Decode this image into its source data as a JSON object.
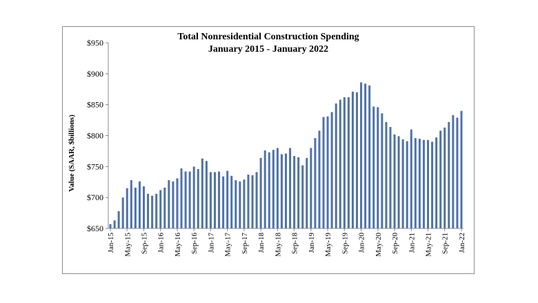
{
  "chart_data": {
    "type": "bar",
    "title": "Total Nonresidential Construction Spending",
    "subtitle": "January 2015 - January 2022",
    "xlabel": "",
    "ylabel": "Value (SAAR, $billions)",
    "ylim": [
      650,
      950
    ],
    "y_ticks": [
      "$650",
      "$700",
      "$750",
      "$800",
      "$850",
      "$900",
      "$950"
    ],
    "y_tick_values": [
      650,
      700,
      750,
      800,
      850,
      900,
      950
    ],
    "x_tick_labels": [
      "Jan-15",
      "May-15",
      "Sep-15",
      "Jan-16",
      "May-16",
      "Sep-16",
      "Jan-17",
      "May-17",
      "Sep-17",
      "Jan-18",
      "May-18",
      "Sep-18",
      "Jan-19",
      "May-19",
      "Sep-19",
      "Jan-20",
      "May-20",
      "Sep-20",
      "Jan-21",
      "May-21",
      "Sep-21",
      "Jan-22"
    ],
    "bar_color": "#4f73a8",
    "grid": false,
    "categories": [
      "Jan-15",
      "Feb-15",
      "Mar-15",
      "Apr-15",
      "May-15",
      "Jun-15",
      "Jul-15",
      "Aug-15",
      "Sep-15",
      "Oct-15",
      "Nov-15",
      "Dec-15",
      "Jan-16",
      "Feb-16",
      "Mar-16",
      "Apr-16",
      "May-16",
      "Jun-16",
      "Jul-16",
      "Aug-16",
      "Sep-16",
      "Oct-16",
      "Nov-16",
      "Dec-16",
      "Jan-17",
      "Feb-17",
      "Mar-17",
      "Apr-17",
      "May-17",
      "Jun-17",
      "Jul-17",
      "Aug-17",
      "Sep-17",
      "Oct-17",
      "Nov-17",
      "Dec-17",
      "Jan-18",
      "Feb-18",
      "Mar-18",
      "Apr-18",
      "May-18",
      "Jun-18",
      "Jul-18",
      "Aug-18",
      "Sep-18",
      "Oct-18",
      "Nov-18",
      "Dec-18",
      "Jan-19",
      "Feb-19",
      "Mar-19",
      "Apr-19",
      "May-19",
      "Jun-19",
      "Jul-19",
      "Aug-19",
      "Sep-19",
      "Oct-19",
      "Nov-19",
      "Dec-19",
      "Jan-20",
      "Feb-20",
      "Mar-20",
      "Apr-20",
      "May-20",
      "Jun-20",
      "Jul-20",
      "Aug-20",
      "Sep-20",
      "Oct-20",
      "Nov-20",
      "Dec-20",
      "Jan-21",
      "Feb-21",
      "Mar-21",
      "Apr-21",
      "May-21",
      "Jun-21",
      "Jul-21",
      "Aug-21",
      "Sep-21",
      "Oct-21",
      "Nov-21",
      "Dec-21",
      "Jan-22"
    ],
    "values": [
      657,
      663,
      678,
      700,
      715,
      728,
      716,
      726,
      718,
      706,
      703,
      706,
      712,
      716,
      728,
      726,
      731,
      747,
      742,
      742,
      750,
      746,
      763,
      759,
      741,
      741,
      742,
      734,
      743,
      735,
      728,
      726,
      729,
      737,
      736,
      741,
      764,
      776,
      773,
      777,
      780,
      770,
      771,
      780,
      767,
      765,
      752,
      764,
      780,
      796,
      808,
      830,
      831,
      838,
      852,
      858,
      862,
      862,
      871,
      870,
      886,
      884,
      881,
      847,
      846,
      836,
      822,
      814,
      802,
      799,
      794,
      791,
      810,
      796,
      795,
      793,
      793,
      790,
      797,
      808,
      813,
      822,
      833,
      829,
      840
    ]
  }
}
